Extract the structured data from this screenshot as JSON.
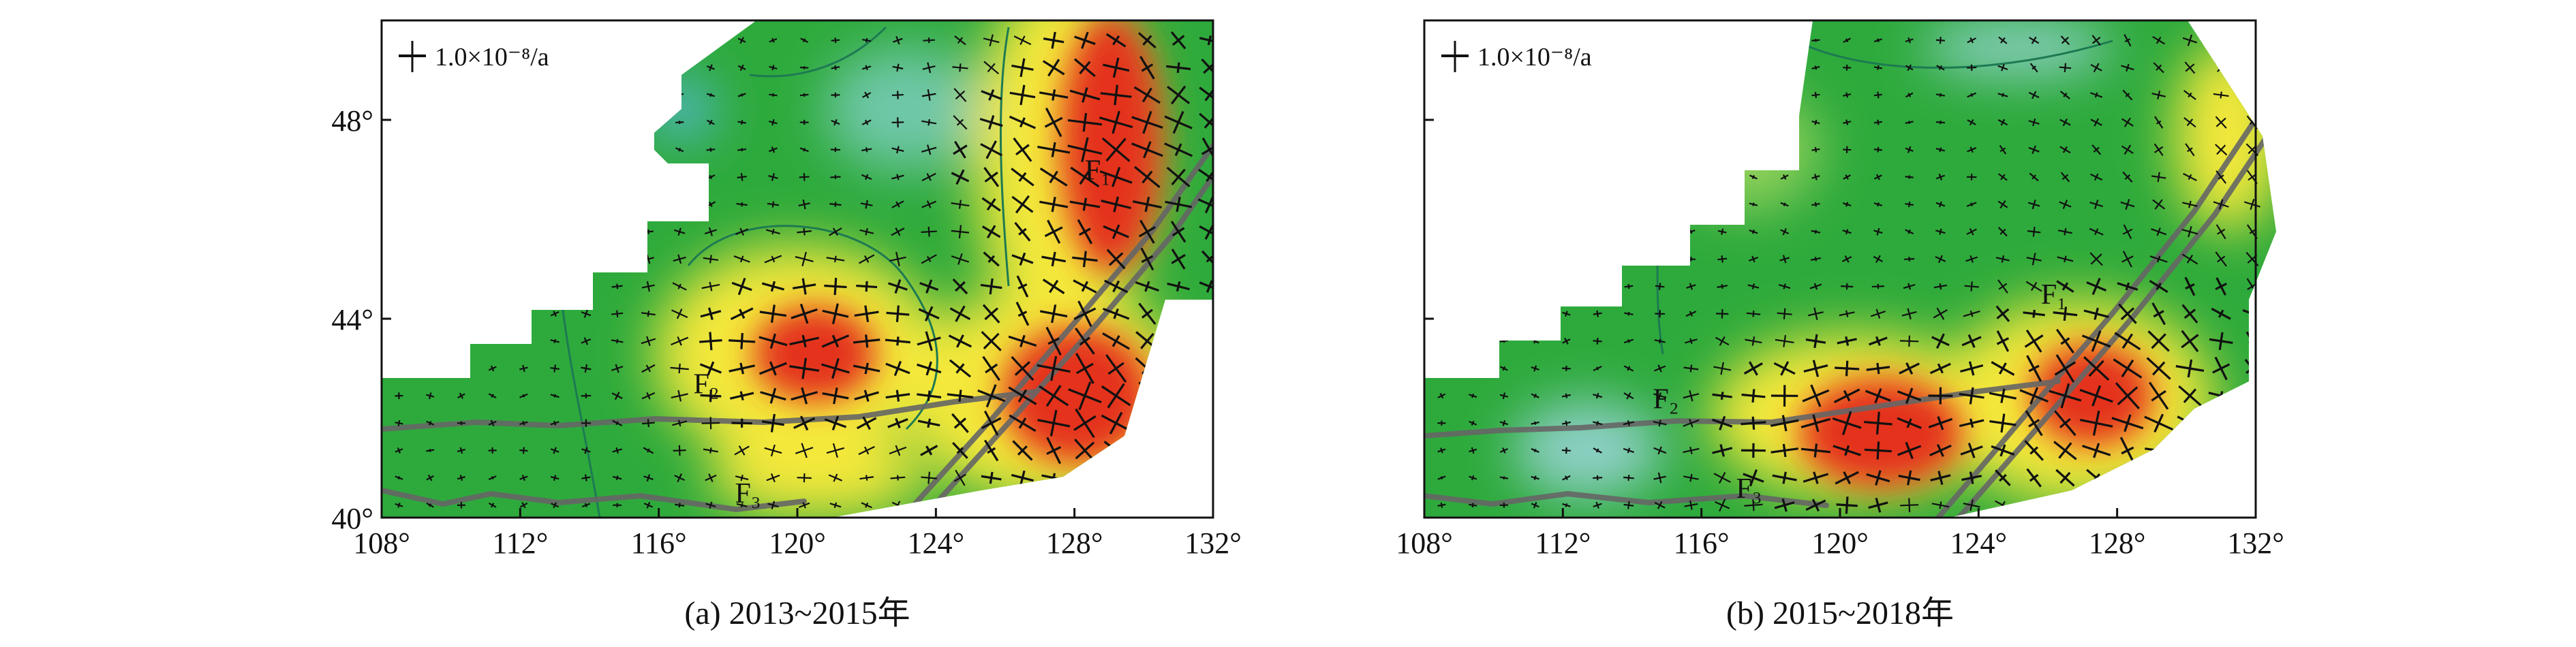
{
  "panels": [
    {
      "caption": "(a) 2013~2015年",
      "scale_label": "1.0×10⁻⁸/a",
      "x_ticks": [
        "108°",
        "112°",
        "116°",
        "120°",
        "124°",
        "128°",
        "132°"
      ],
      "y_ticks": [
        "48°",
        "44°",
        "40°"
      ],
      "fault_labels": [
        {
          "text": "F₁",
          "lon": 128.3,
          "lat": 46.8
        },
        {
          "text": "F₂",
          "lon": 117.0,
          "lat": 42.5
        },
        {
          "text": "F₃",
          "lon": 118.2,
          "lat": 40.3
        }
      ],
      "hotspots": [
        {
          "lon": 120.0,
          "lat": 43.3,
          "strength": "high"
        },
        {
          "lon": 128.5,
          "lat": 47.5,
          "strength": "high"
        },
        {
          "lon": 128.0,
          "lat": 42.5,
          "strength": "high"
        }
      ]
    },
    {
      "caption": "(b) 2015~2018年",
      "scale_label": "1.0×10⁻⁸/a",
      "x_ticks": [
        "108°",
        "112°",
        "116°",
        "120°",
        "124°",
        "128°",
        "132°"
      ],
      "y_ticks": [
        "48°",
        "44°",
        "40°"
      ],
      "fault_labels": [
        {
          "text": "F₁",
          "lon": 125.8,
          "lat": 44.3
        },
        {
          "text": "F₂",
          "lon": 114.6,
          "lat": 42.2
        },
        {
          "text": "F₃",
          "lon": 117.0,
          "lat": 40.4
        }
      ],
      "hotspots": [
        {
          "lon": 119.5,
          "lat": 41.8,
          "strength": "high"
        },
        {
          "lon": 127.5,
          "lat": 42.5,
          "strength": "high"
        }
      ]
    }
  ],
  "colors": {
    "background": "#2eaa3c",
    "mid": "#f4e83a",
    "high": "#e4331f",
    "low": "#8fd0c8",
    "fault": "#666666",
    "contour": "#1d7a52"
  }
}
